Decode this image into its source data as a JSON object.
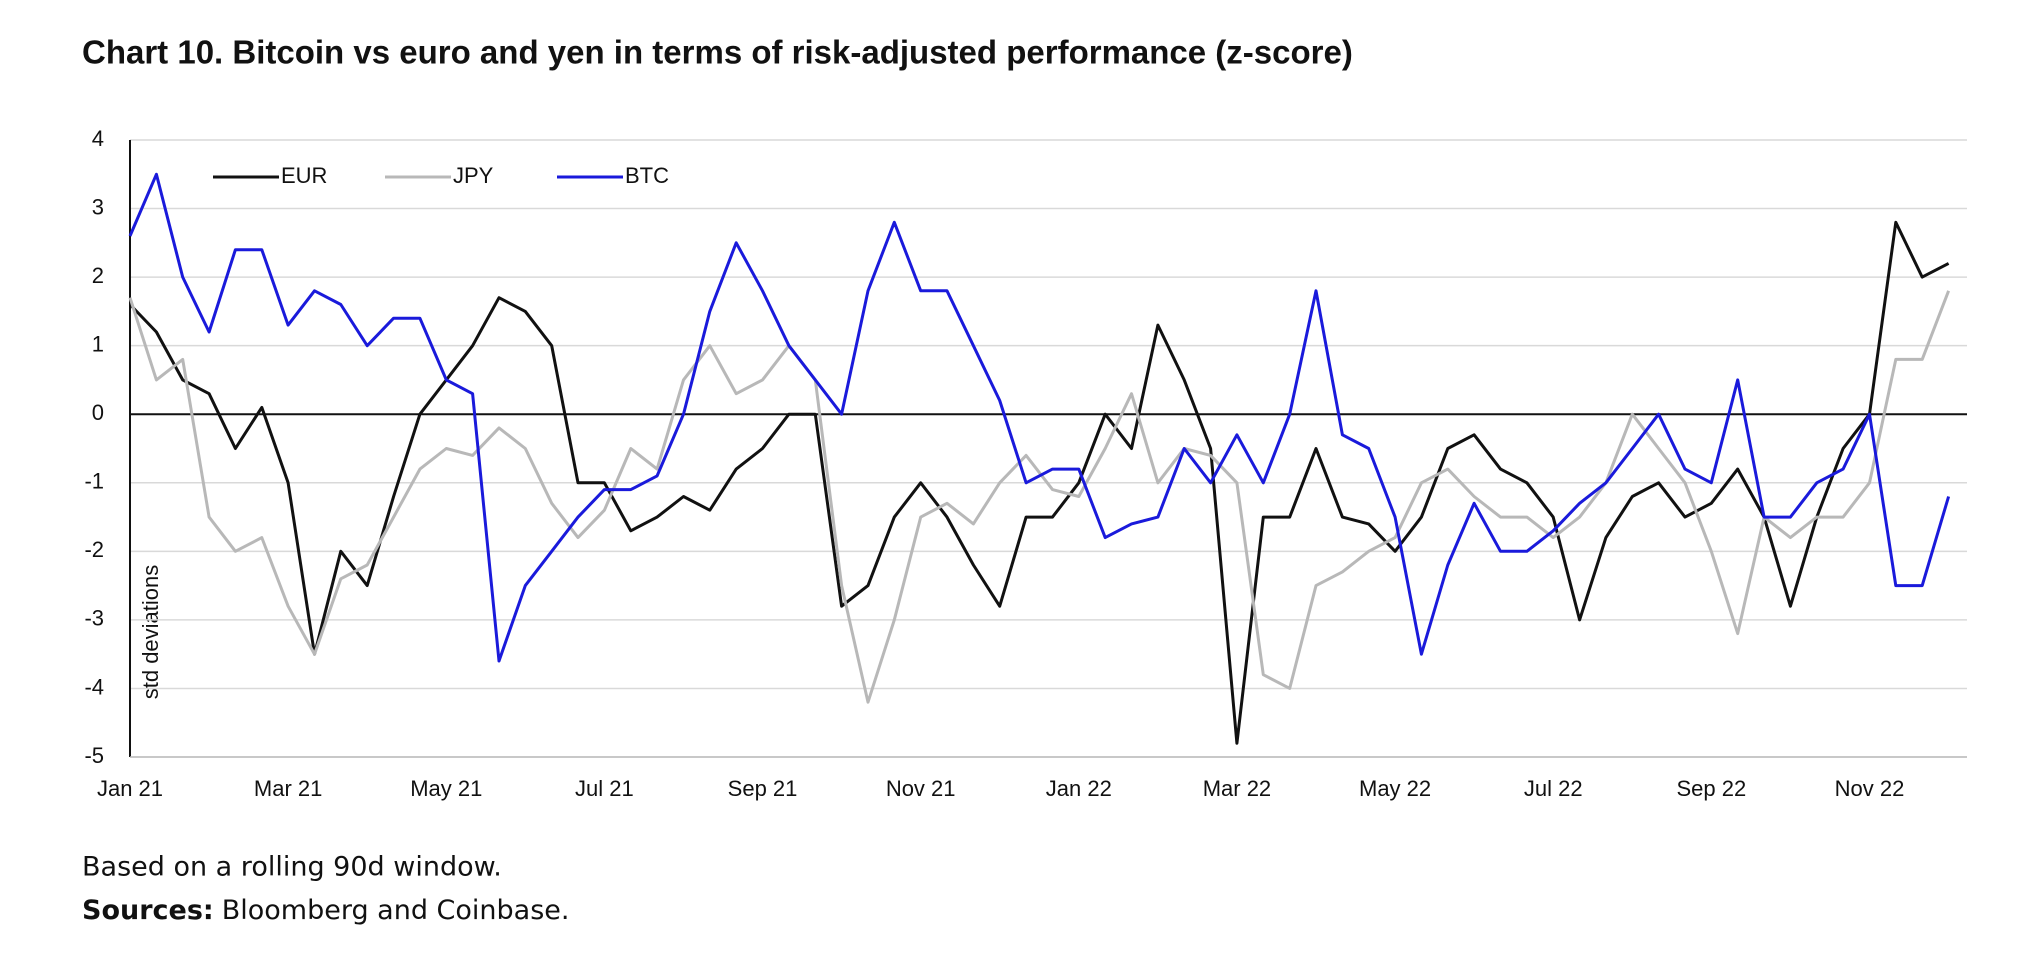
{
  "chart_data": {
    "type": "line",
    "title": "Chart 10. Bitcoin vs euro and yen in terms of risk-adjusted performance (z-score)",
    "y_label": "std deviations",
    "footnote": "Based on a rolling 90d window.",
    "source_label": "Sources:",
    "source": "Bloomberg and Coinbase.",
    "categories": [
      "Jan 21",
      null,
      null,
      null,
      null,
      null,
      "Mar 21",
      null,
      null,
      null,
      null,
      null,
      "May 21",
      null,
      null,
      null,
      null,
      null,
      "Jul 21",
      null,
      null,
      null,
      null,
      null,
      "Sep 21",
      null,
      null,
      null,
      null,
      null,
      "Nov 21",
      null,
      null,
      null,
      null,
      null,
      "Jan 22",
      null,
      null,
      null,
      null,
      null,
      "Mar 22",
      null,
      null,
      null,
      null,
      null,
      "May 22",
      null,
      null,
      null,
      null,
      null,
      "Jul 22",
      null,
      null,
      null,
      null,
      null,
      "Sep 22",
      null,
      null,
      null,
      null,
      null,
      "Nov 22",
      null,
      null,
      null
    ],
    "series": [
      {
        "name": "EUR",
        "color": "#111111",
        "values": [
          1.6,
          1.2,
          0.5,
          0.3,
          -0.5,
          0.1,
          -1.0,
          -3.5,
          -2.0,
          -2.5,
          -1.2,
          0.0,
          0.5,
          1.0,
          1.7,
          1.5,
          1.0,
          -1.0,
          -1.0,
          -1.7,
          -1.5,
          -1.2,
          -1.4,
          -0.8,
          -0.5,
          0.0,
          0.0,
          -2.8,
          -2.5,
          -1.5,
          -1.0,
          -1.5,
          -2.2,
          -2.8,
          -1.5,
          -1.5,
          -1.0,
          0.0,
          -0.5,
          1.3,
          0.5,
          -0.5,
          -4.8,
          -1.5,
          -1.5,
          -0.5,
          -1.5,
          -1.6,
          -2.0,
          -1.5,
          -0.5,
          -0.3,
          -0.8,
          -1.0,
          -1.5,
          -3.0,
          -1.8,
          -1.2,
          -1.0,
          -1.5,
          -1.3,
          -0.8,
          -1.5,
          -2.8,
          -1.5,
          -0.5,
          0.0,
          2.8,
          2.0,
          2.2
        ]
      },
      {
        "name": "JPY",
        "color": "#b8b8b8",
        "values": [
          1.7,
          0.5,
          0.8,
          -1.5,
          -2.0,
          -1.8,
          -2.8,
          -3.5,
          -2.4,
          -2.2,
          -1.5,
          -0.8,
          -0.5,
          -0.6,
          -0.2,
          -0.5,
          -1.3,
          -1.8,
          -1.4,
          -0.5,
          -0.8,
          0.5,
          1.0,
          0.3,
          0.5,
          1.0,
          0.5,
          -2.5,
          -4.2,
          -3.0,
          -1.5,
          -1.3,
          -1.6,
          -1.0,
          -0.6,
          -1.1,
          -1.2,
          -0.5,
          0.3,
          -1.0,
          -0.5,
          -0.6,
          -1.0,
          -3.8,
          -4.0,
          -2.5,
          -2.3,
          -2.0,
          -1.8,
          -1.0,
          -0.8,
          -1.2,
          -1.5,
          -1.5,
          -1.8,
          -1.5,
          -1.0,
          0.0,
          -0.5,
          -1.0,
          -2.0,
          -3.2,
          -1.5,
          -1.8,
          -1.5,
          -1.5,
          -1.0,
          0.8,
          0.8,
          1.8
        ]
      },
      {
        "name": "BTC",
        "color": "#1a1adb",
        "values": [
          2.6,
          3.5,
          2.0,
          1.2,
          2.4,
          2.4,
          1.3,
          1.8,
          1.6,
          1.0,
          1.4,
          1.4,
          0.5,
          0.3,
          -3.6,
          -2.5,
          -2.0,
          -1.5,
          -1.1,
          -1.1,
          -0.9,
          0.0,
          1.5,
          2.5,
          1.8,
          1.0,
          0.5,
          0.0,
          1.8,
          2.8,
          1.8,
          1.8,
          1.0,
          0.2,
          -1.0,
          -0.8,
          -0.8,
          -1.8,
          -1.6,
          -1.5,
          -0.5,
          -1.0,
          -0.3,
          -1.0,
          0.0,
          1.8,
          -0.3,
          -0.5,
          -1.5,
          -3.5,
          -2.2,
          -1.3,
          -2.0,
          -2.0,
          -1.7,
          -1.3,
          -1.0,
          -0.5,
          0.0,
          -0.8,
          -1.0,
          0.5,
          -1.5,
          -1.5,
          -1.0,
          -0.8,
          0.0,
          -2.5,
          -2.5,
          -1.2
        ]
      }
    ],
    "ylim": [
      -5,
      4
    ],
    "yticks": [
      -5,
      -4,
      -3,
      -2,
      -1,
      0,
      1,
      2,
      3,
      4
    ],
    "grid": true,
    "legend": "top-left"
  }
}
